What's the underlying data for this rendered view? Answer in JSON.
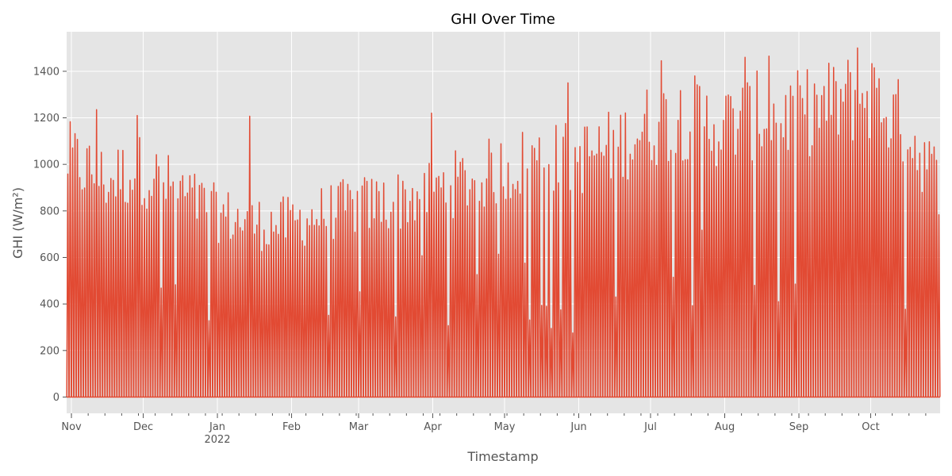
{
  "chart_data": {
    "type": "line",
    "title": "GHI Over Time",
    "xlabel": "Timestamp",
    "ylabel": "GHI (W/m²)",
    "x_range": [
      "2021-10-30",
      "2022-10-30"
    ],
    "ylim": [
      -70,
      1570
    ],
    "y_ticks": [
      0,
      200,
      400,
      600,
      800,
      1000,
      1200,
      1400
    ],
    "x_ticks": [
      {
        "label": "Nov",
        "date": "2021-11-01"
      },
      {
        "label": "Dec",
        "date": "2021-12-01"
      },
      {
        "label": "Jan",
        "date": "2022-01-01"
      },
      {
        "label": "Feb",
        "date": "2022-02-01"
      },
      {
        "label": "Mar",
        "date": "2022-03-01"
      },
      {
        "label": "Apr",
        "date": "2022-04-01"
      },
      {
        "label": "May",
        "date": "2022-05-01"
      },
      {
        "label": "Jun",
        "date": "2022-06-01"
      },
      {
        "label": "Jul",
        "date": "2022-07-01"
      },
      {
        "label": "Aug",
        "date": "2022-08-01"
      },
      {
        "label": "Sep",
        "date": "2022-09-01"
      },
      {
        "label": "Oct",
        "date": "2022-10-01"
      }
    ],
    "x_year_label": {
      "label": "2022",
      "date": "2022-01-01"
    },
    "grid": true,
    "legend": "none",
    "colors": {
      "series": "#e24a33",
      "plot_background": "#e5e5e5",
      "grid": "#ffffff"
    },
    "series": [
      {
        "x": [
          "2021-10-31",
          "2021-11-15",
          "2021-11-30",
          "2021-12-15",
          "2021-12-31",
          "2022-01-15",
          "2022-01-31",
          "2022-02-15",
          "2022-02-28",
          "2022-03-15",
          "2022-03-31",
          "2022-04-15",
          "2022-04-30",
          "2022-05-15",
          "2022-05-31",
          "2022-06-15",
          "2022-06-30",
          "2022-07-15",
          "2022-07-31",
          "2022-08-15",
          "2022-08-31",
          "2022-09-15",
          "2022-09-30",
          "2022-10-15",
          "2022-10-29"
        ],
        "daily_max": [
          1100,
          1000,
          1050,
          950,
          850,
          800,
          800,
          850,
          880,
          900,
          950,
          1000,
          1050,
          1100,
          1100,
          1150,
          1250,
          1300,
          1250,
          1300,
          1300,
          1350,
          1400,
          1250,
          1000
        ],
        "peaks": [
          {
            "x": "2021-11-11",
            "y": 1235
          },
          {
            "x": "2021-11-28",
            "y": 1210
          },
          {
            "x": "2022-01-14",
            "y": 1207
          },
          {
            "x": "2022-03-31",
            "y": 1220
          },
          {
            "x": "2022-05-27",
            "y": 1350
          },
          {
            "x": "2022-07-05",
            "y": 1445
          },
          {
            "x": "2022-08-09",
            "y": 1460
          },
          {
            "x": "2022-08-19",
            "y": 1465
          },
          {
            "x": "2022-09-25",
            "y": 1500
          },
          {
            "x": "2022-10-02",
            "y": 1415
          }
        ],
        "dips": [
          {
            "x": "2022-05-18",
            "y": 390
          },
          {
            "x": "2022-05-29",
            "y": 275
          },
          {
            "x": "2022-06-16",
            "y": 430
          },
          {
            "x": "2022-08-13",
            "y": 480
          },
          {
            "x": "2022-08-23",
            "y": 410
          }
        ],
        "night_value": 0
      }
    ]
  }
}
